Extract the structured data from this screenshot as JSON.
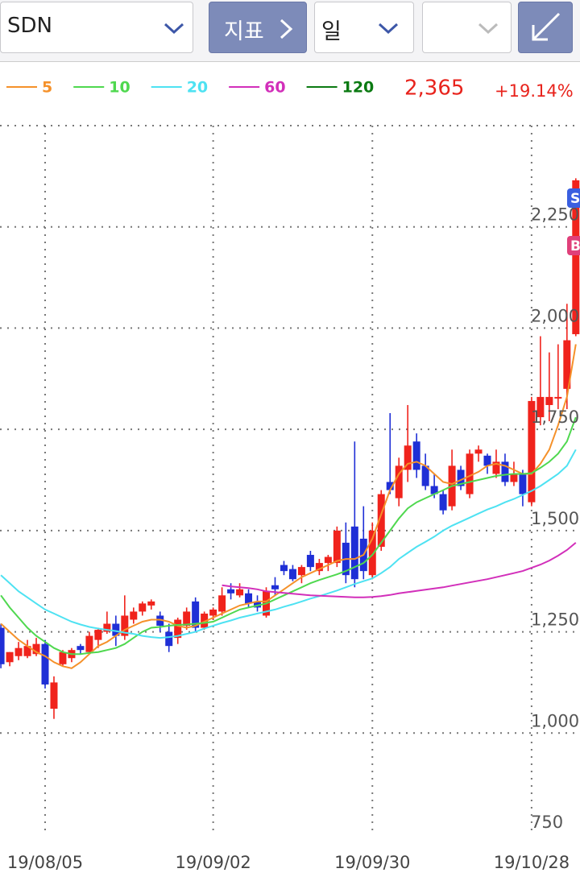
{
  "toolbar": {
    "symbol": "SDN",
    "indicator": "지표",
    "period": "일"
  },
  "header": {
    "last_price": "2,365",
    "change": "+19.14%"
  },
  "markers": [
    "S",
    "B"
  ],
  "chart_data": {
    "type": "candlestick",
    "categories": [
      null,
      null,
      null,
      null,
      null,
      "19/08/05",
      null,
      null,
      null,
      null,
      null,
      null,
      null,
      null,
      null,
      null,
      null,
      null,
      null,
      null,
      null,
      null,
      null,
      null,
      "19/09/02",
      null,
      null,
      null,
      null,
      null,
      null,
      null,
      null,
      null,
      null,
      null,
      null,
      null,
      null,
      null,
      null,
      null,
      "19/09/30",
      null,
      null,
      null,
      null,
      null,
      null,
      null,
      null,
      null,
      null,
      null,
      null,
      null,
      null,
      null,
      null,
      null,
      "19/10/28",
      null,
      null,
      null,
      null,
      null
    ],
    "open": [
      1260,
      1175,
      1190,
      1190,
      1195,
      1220,
      1060,
      1170,
      1185,
      1215,
      1200,
      1230,
      1250,
      1270,
      1240,
      1280,
      1300,
      1315,
      1290,
      1250,
      1235,
      1265,
      1325,
      1260,
      1290,
      1300,
      1355,
      1340,
      1345,
      1325,
      1290,
      1365,
      1415,
      1405,
      1390,
      1440,
      1400,
      1420,
      1420,
      1470,
      1510,
      1480,
      1390,
      1460,
      1620,
      1580,
      1650,
      1720,
      1660,
      1610,
      1590,
      1560,
      1650,
      1590,
      1690,
      1685,
      1640,
      1670,
      1620,
      1640,
      1570,
      1780,
      1810,
      1830,
      1850,
      1985
    ],
    "high": [
      1270,
      1200,
      1225,
      1230,
      1235,
      1230,
      1140,
      1205,
      1210,
      1220,
      1250,
      1260,
      1300,
      1290,
      1340,
      1310,
      1325,
      1330,
      1300,
      1270,
      1285,
      1310,
      1335,
      1300,
      1310,
      1360,
      1370,
      1370,
      1355,
      1340,
      1360,
      1385,
      1425,
      1415,
      1415,
      1450,
      1430,
      1440,
      1510,
      1520,
      1720,
      1560,
      1520,
      1600,
      1790,
      1680,
      1810,
      1740,
      1690,
      1640,
      1600,
      1700,
      1660,
      1700,
      1710,
      1690,
      1700,
      1690,
      1670,
      1650,
      1830,
      1980,
      1940,
      1960,
      2060,
      2370
    ],
    "low": [
      1160,
      1165,
      1180,
      1185,
      1190,
      1110,
      1035,
      1165,
      1175,
      1195,
      1195,
      1210,
      1245,
      1215,
      1230,
      1270,
      1290,
      1305,
      1250,
      1200,
      1220,
      1255,
      1250,
      1255,
      1280,
      1290,
      1330,
      1335,
      1310,
      1300,
      1285,
      1340,
      1390,
      1375,
      1370,
      1400,
      1390,
      1400,
      1410,
      1370,
      1360,
      1380,
      1380,
      1450,
      1590,
      1560,
      1620,
      1630,
      1600,
      1580,
      1540,
      1550,
      1600,
      1580,
      1670,
      1640,
      1630,
      1610,
      1610,
      1560,
      1560,
      1760,
      1770,
      1800,
      1800,
      1980
    ],
    "close": [
      1170,
      1200,
      1210,
      1215,
      1220,
      1120,
      1125,
      1200,
      1205,
      1205,
      1240,
      1255,
      1270,
      1240,
      1290,
      1300,
      1320,
      1325,
      1265,
      1215,
      1280,
      1300,
      1260,
      1295,
      1305,
      1340,
      1345,
      1355,
      1320,
      1310,
      1350,
      1355,
      1400,
      1380,
      1410,
      1410,
      1420,
      1435,
      1500,
      1390,
      1380,
      1400,
      1500,
      1590,
      1600,
      1660,
      1710,
      1650,
      1610,
      1590,
      1550,
      1660,
      1610,
      1690,
      1700,
      1660,
      1670,
      1620,
      1640,
      1590,
      1820,
      1830,
      1830,
      1830,
      1970,
      2365
    ],
    "up_color": "#f0231c",
    "down_color": "#1f2fd6",
    "series": [
      {
        "name": "5",
        "color": "#f5912a",
        "values": [
          1270,
          1250,
          1230,
          1215,
          1200,
          1190,
          1175,
          1165,
          1160,
          1175,
          1195,
          1215,
          1225,
          1240,
          1255,
          1265,
          1275,
          1280,
          1280,
          1275,
          1265,
          1260,
          1265,
          1275,
          1285,
          1295,
          1305,
          1315,
          1320,
          1325,
          1325,
          1340,
          1355,
          1370,
          1385,
          1395,
          1405,
          1415,
          1425,
          1430,
          1430,
          1440,
          1480,
          1540,
          1600,
          1640,
          1665,
          1670,
          1660,
          1640,
          1620,
          1615,
          1625,
          1635,
          1645,
          1660,
          1665,
          1660,
          1650,
          1640,
          1640,
          1665,
          1700,
          1760,
          1830,
          1960
        ]
      },
      {
        "name": "10",
        "color": "#4fd84f",
        "values": [
          1340,
          1310,
          1285,
          1260,
          1240,
          1225,
          1210,
          1200,
          1195,
          1195,
          1198,
          1200,
          1205,
          1210,
          1220,
          1235,
          1250,
          1260,
          1262,
          1265,
          1267,
          1268,
          1270,
          1272,
          1275,
          1285,
          1295,
          1305,
          1310,
          1315,
          1320,
          1330,
          1340,
          1350,
          1360,
          1370,
          1378,
          1385,
          1392,
          1400,
          1410,
          1420,
          1440,
          1470,
          1500,
          1530,
          1555,
          1570,
          1580,
          1590,
          1600,
          1610,
          1615,
          1620,
          1625,
          1630,
          1635,
          1638,
          1640,
          1640,
          1642,
          1655,
          1670,
          1690,
          1720,
          1780
        ]
      },
      {
        "name": "20",
        "color": "#4ee2f2",
        "values": [
          1390,
          1370,
          1350,
          1335,
          1320,
          1305,
          1295,
          1285,
          1275,
          1268,
          1262,
          1258,
          1255,
          1252,
          1248,
          1245,
          1240,
          1237,
          1235,
          1237,
          1240,
          1245,
          1250,
          1258,
          1265,
          1272,
          1278,
          1285,
          1290,
          1295,
          1300,
          1305,
          1312,
          1318,
          1325,
          1332,
          1338,
          1345,
          1352,
          1360,
          1368,
          1375,
          1382,
          1395,
          1410,
          1430,
          1445,
          1460,
          1472,
          1485,
          1500,
          1512,
          1522,
          1532,
          1542,
          1552,
          1560,
          1570,
          1578,
          1588,
          1598,
          1610,
          1625,
          1640,
          1660,
          1700
        ]
      },
      {
        "name": "60",
        "color": "#d22fba",
        "values": [
          null,
          null,
          null,
          null,
          null,
          null,
          null,
          null,
          null,
          null,
          null,
          null,
          null,
          null,
          null,
          null,
          null,
          null,
          null,
          null,
          null,
          null,
          null,
          null,
          null,
          1365,
          1362,
          1360,
          1358,
          1355,
          1350,
          1348,
          1346,
          1344,
          1342,
          1340,
          1339,
          1338,
          1337,
          1336,
          1335,
          1335,
          1336,
          1338,
          1341,
          1345,
          1348,
          1351,
          1354,
          1357,
          1360,
          1364,
          1368,
          1372,
          1376,
          1380,
          1385,
          1390,
          1395,
          1400,
          1408,
          1416,
          1426,
          1438,
          1452,
          1470
        ]
      },
      {
        "name": "120",
        "color": "#0b7a12",
        "values": [
          null,
          null,
          null,
          null,
          null,
          null,
          null,
          null,
          null,
          null,
          null,
          null,
          null,
          null,
          null,
          null,
          null,
          null,
          null,
          null,
          null,
          null,
          null,
          null,
          null,
          null,
          null,
          null,
          null,
          null,
          null,
          null,
          null,
          null,
          null,
          null,
          null,
          null,
          null,
          null,
          null,
          null,
          null,
          null,
          null,
          null,
          null,
          null,
          null,
          null,
          null,
          null,
          null,
          null,
          null,
          null,
          null,
          null,
          null,
          null,
          null,
          null,
          null,
          null,
          null,
          null
        ]
      }
    ],
    "ylim": [
      750,
      2500
    ],
    "yticks": [
      {
        "value": 750,
        "label": "750"
      },
      {
        "value": 1000,
        "label": "1,000"
      },
      {
        "value": 1250,
        "label": "1,250"
      },
      {
        "value": 1500,
        "label": "1,500"
      },
      {
        "value": 1750,
        "label": "1,750"
      },
      {
        "value": 2000,
        "label": "2,000"
      },
      {
        "value": 2250,
        "label": "2,250"
      }
    ],
    "grid": true
  }
}
